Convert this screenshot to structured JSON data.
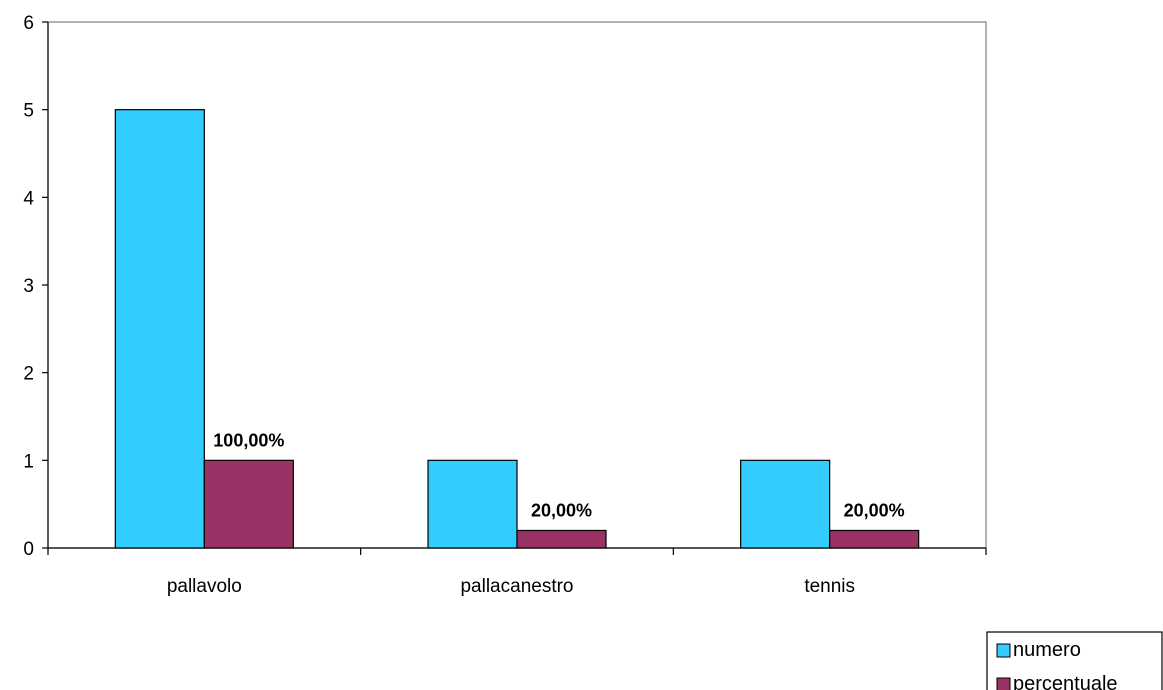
{
  "chart_data": {
    "type": "bar",
    "categories": [
      "pallavolo",
      "pallacanestro",
      "tennis"
    ],
    "series": [
      {
        "name": "numero",
        "values": [
          5,
          1,
          1
        ],
        "color": "#33CCFF"
      },
      {
        "name": "percentuale",
        "values": [
          1,
          0.2,
          0.2
        ],
        "color": "#993366",
        "data_labels": [
          "100,00%",
          "20,00%",
          "20,00%"
        ]
      }
    ],
    "ylim": [
      0,
      6
    ],
    "yticks": [
      "0",
      "1",
      "2",
      "3",
      "4",
      "5",
      "6"
    ],
    "grid": false,
    "legend_position": "bottom-right"
  }
}
